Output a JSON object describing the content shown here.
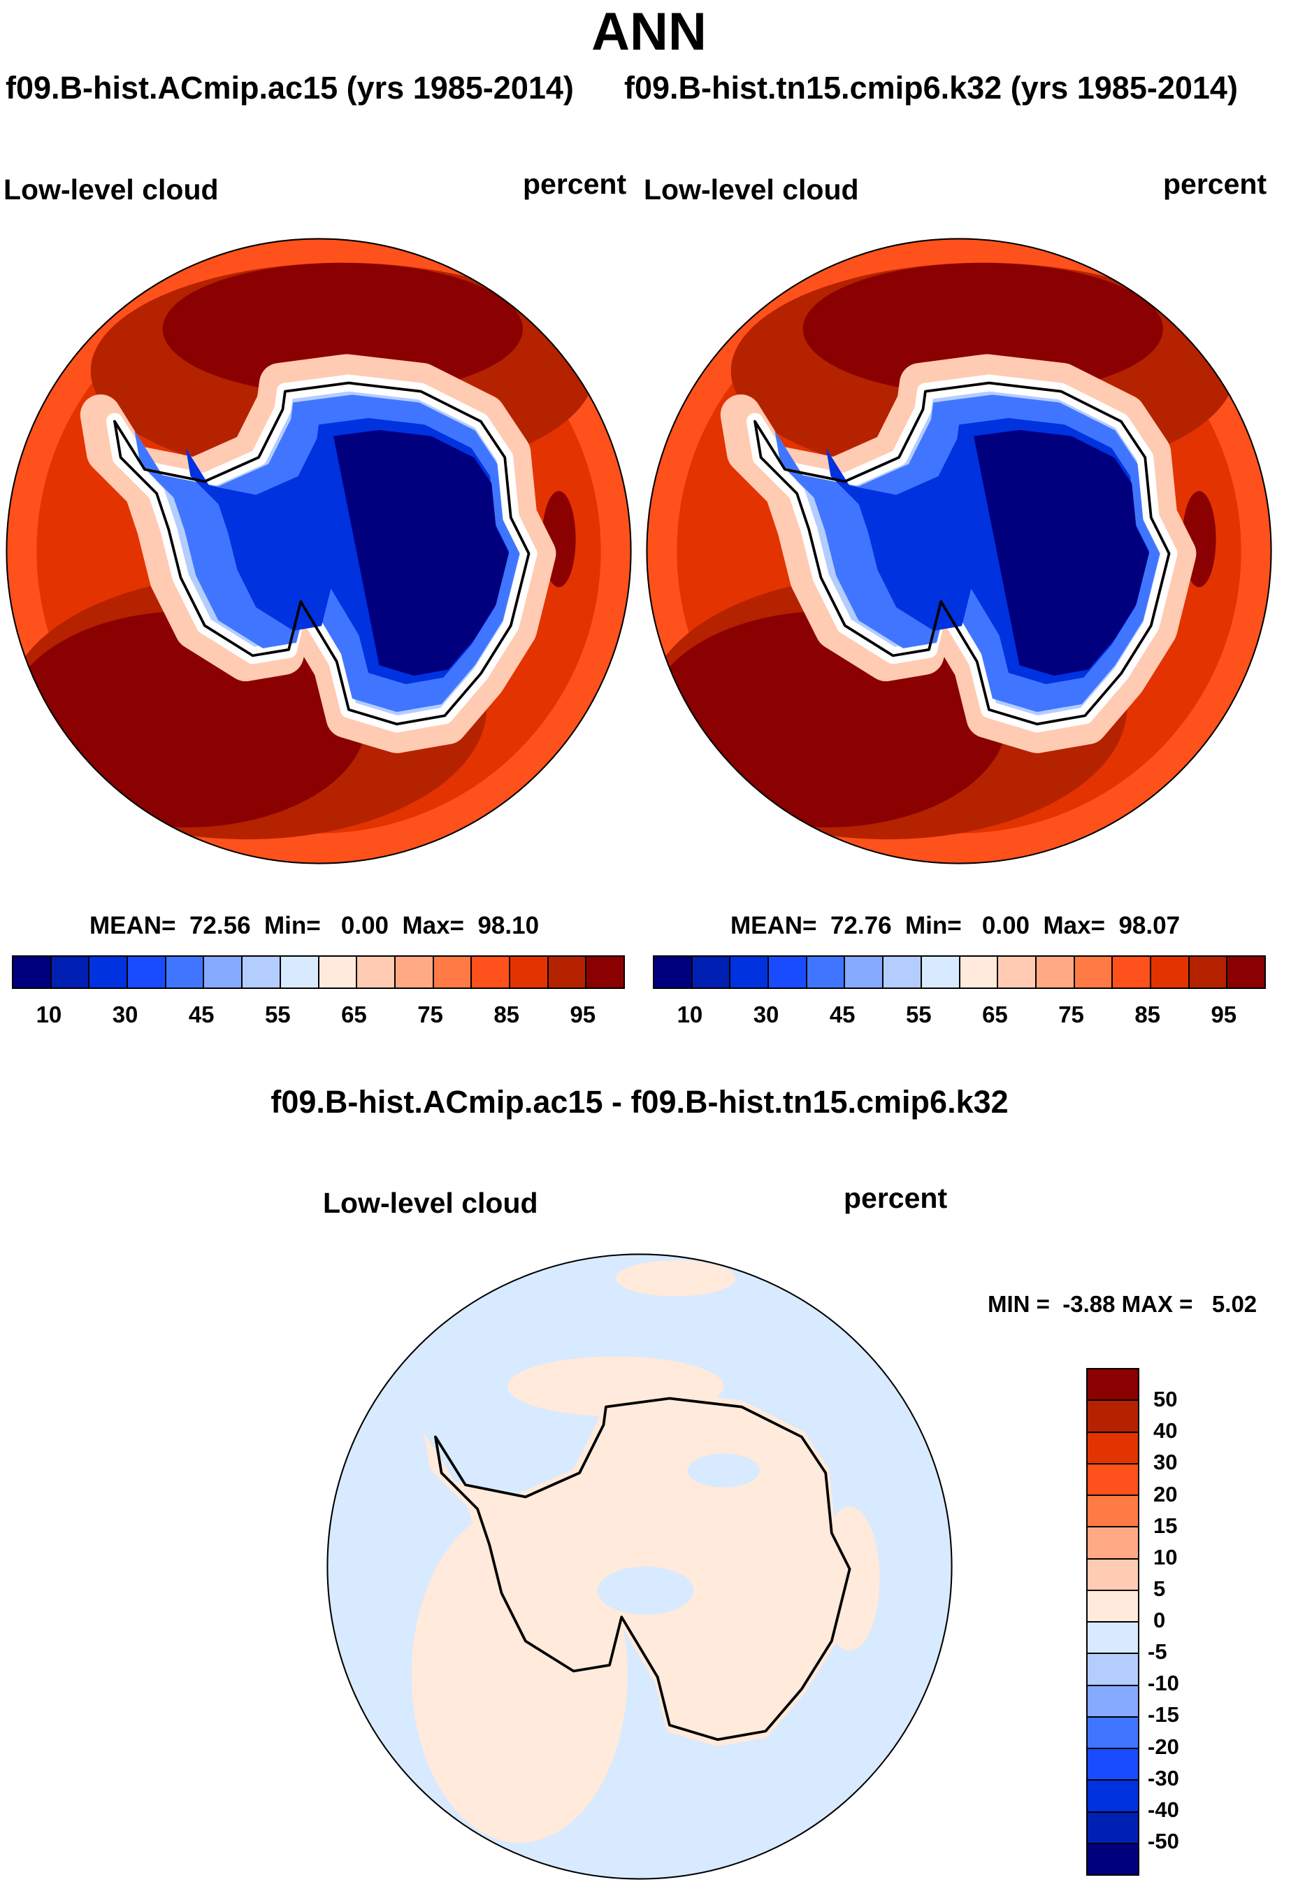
{
  "title": "ANN",
  "chart_data": [
    {
      "type": "heatmap",
      "projection": "south-polar stereographic",
      "title": "f09.B-hist.ACmip.ac15 (yrs 1985-2014)",
      "left_label": "Low-level cloud",
      "right_label": "percent",
      "stats": {
        "mean_label": "MEAN=",
        "mean": "72.56",
        "min_label": "Min=",
        "min": "0.00",
        "max_label": "Max=",
        "max": "98.10"
      },
      "colorbar_ticks": [
        "10",
        "30",
        "45",
        "55",
        "65",
        "75",
        "85",
        "95"
      ]
    },
    {
      "type": "heatmap",
      "projection": "south-polar stereographic",
      "title": "f09.B-hist.tn15.cmip6.k32 (yrs 1985-2014)",
      "left_label": "Low-level cloud",
      "right_label": "percent",
      "stats": {
        "mean_label": "MEAN=",
        "mean": "72.76",
        "min_label": "Min=",
        "min": "0.00",
        "max_label": "Max=",
        "max": "98.07"
      },
      "colorbar_ticks": [
        "10",
        "30",
        "45",
        "55",
        "65",
        "75",
        "85",
        "95"
      ]
    },
    {
      "type": "heatmap",
      "projection": "south-polar stereographic",
      "title": "f09.B-hist.ACmip.ac15 - f09.B-hist.tn15.cmip6.k32",
      "left_label": "Low-level cloud",
      "right_label": "percent",
      "stats_text": "MIN =  -3.88 MAX =   5.02",
      "colorbar_ticks": [
        "50",
        "40",
        "30",
        "20",
        "15",
        "10",
        "5",
        "0",
        "-5",
        "-10",
        "-15",
        "-20",
        "-30",
        "-40",
        "-50"
      ]
    }
  ],
  "colors": [
    "#00007f",
    "#0020b4",
    "#0032e0",
    "#1a4cff",
    "#4076ff",
    "#85aaff",
    "#b4cdff",
    "#d7eaff",
    "#ffeadb",
    "#ffcbb2",
    "#ffaa85",
    "#ff7a45",
    "#ff511b",
    "#e33300",
    "#b52200",
    "#8b0000"
  ]
}
